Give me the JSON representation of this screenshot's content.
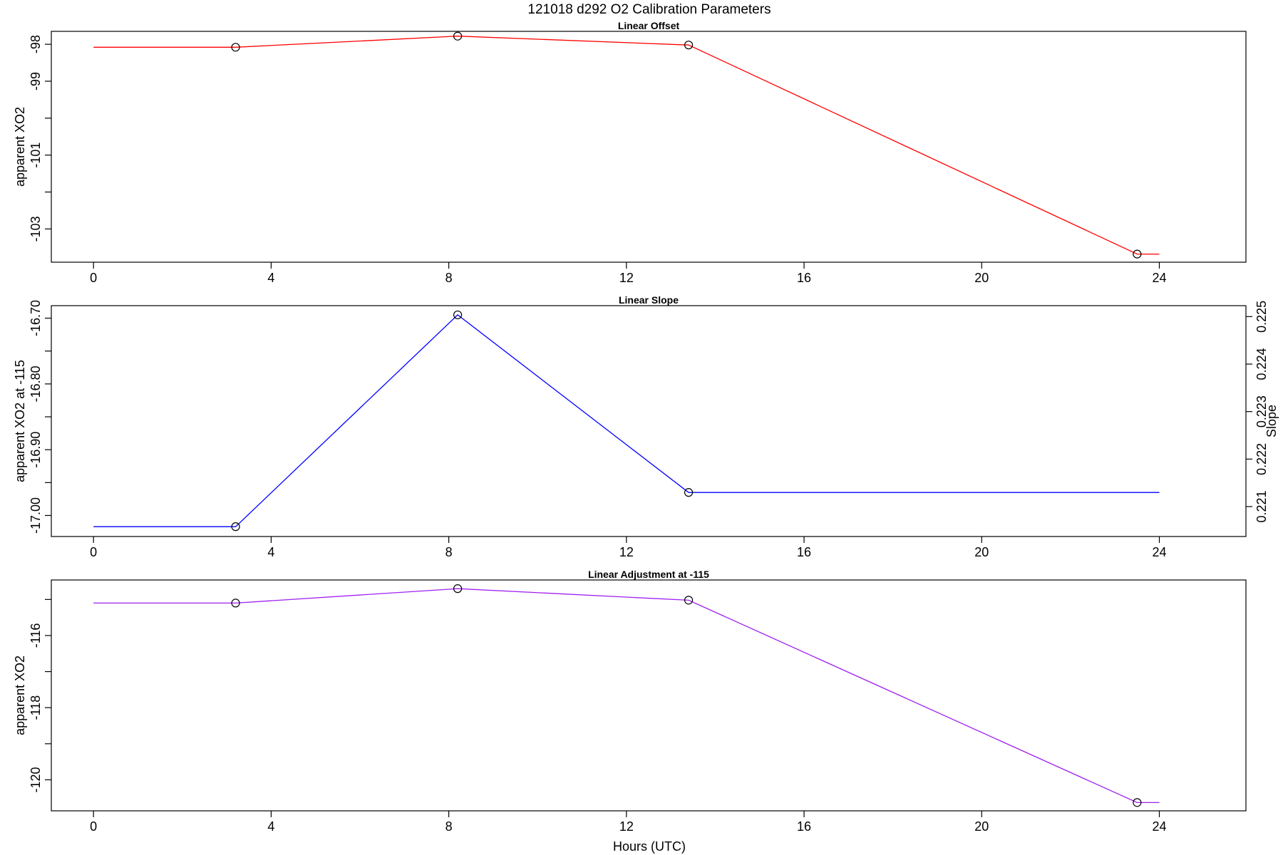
{
  "title": "121018   d292   O2 Calibration Parameters",
  "xlabel": "Hours (UTC)",
  "chart_data": [
    {
      "type": "line",
      "title": "Linear Offset",
      "ylabel": "apparent XO2",
      "xlim": [
        -0.95,
        25.95
      ],
      "ylim": [
        -103.9,
        -97.65
      ],
      "xticks": [
        0,
        4,
        8,
        12,
        16,
        20,
        24
      ],
      "yticks": [
        -98,
        -99,
        -100,
        -101,
        -102,
        -103
      ],
      "ytick_labels": [
        "-98",
        "-99",
        "",
        "-101",
        "",
        "-103"
      ],
      "series": [
        {
          "color": "#ff0000",
          "line": [
            [
              0,
              -98.08
            ],
            [
              3.2,
              -98.08
            ],
            [
              8.2,
              -97.78
            ],
            [
              13.4,
              -98.02
            ],
            [
              23.5,
              -103.68
            ],
            [
              24,
              -103.68
            ]
          ],
          "points": [
            [
              3.2,
              -98.08
            ],
            [
              8.2,
              -97.78
            ],
            [
              13.4,
              -98.02
            ],
            [
              23.5,
              -103.68
            ]
          ]
        }
      ]
    },
    {
      "type": "line",
      "title": "Linear Slope",
      "ylabel": "apparent XO2 at -115",
      "ylabel_right": "Slope",
      "xlim": [
        -0.95,
        25.95
      ],
      "ylim": [
        -17.032,
        -16.681
      ],
      "xticks": [
        0,
        4,
        8,
        12,
        16,
        20,
        24
      ],
      "yticks": [
        -16.7,
        -16.75,
        -16.8,
        -16.85,
        -16.9,
        -16.95,
        -17.0
      ],
      "ytick_labels": [
        "-16.70",
        "",
        "-16.80",
        "",
        "-16.90",
        "",
        "-17.00"
      ],
      "y2lim": [
        0.22037,
        0.22523
      ],
      "y2ticks": [
        0.221,
        0.222,
        0.223,
        0.224,
        0.225
      ],
      "y2tick_labels": [
        "0.221",
        "0.222",
        "0.223",
        "0.224",
        "0.225"
      ],
      "series": [
        {
          "color": "#0000ff",
          "line": [
            [
              0,
              -17.017
            ],
            [
              3.2,
              -17.017
            ],
            [
              8.2,
              -16.695
            ],
            [
              13.4,
              -16.965
            ],
            [
              24,
              -16.965
            ]
          ],
          "points": [
            [
              3.2,
              -17.017
            ],
            [
              8.2,
              -16.695
            ],
            [
              13.4,
              -16.965
            ]
          ]
        }
      ]
    },
    {
      "type": "line",
      "title": "Linear Adjustment at -115",
      "ylabel": "apparent XO2",
      "xlim": [
        -0.95,
        25.95
      ],
      "ylim": [
        -120.86,
        -114.46
      ],
      "xticks": [
        0,
        4,
        8,
        12,
        16,
        20,
        24
      ],
      "yticks": [
        -115,
        -116,
        -117,
        -118,
        -119,
        -120
      ],
      "ytick_labels": [
        "",
        "-116",
        "",
        "-118",
        "",
        "-120"
      ],
      "series": [
        {
          "color": "#a020f0",
          "line": [
            [
              0,
              -115.1
            ],
            [
              3.2,
              -115.1
            ],
            [
              8.2,
              -114.7
            ],
            [
              13.4,
              -115.02
            ],
            [
              23.5,
              -120.63
            ],
            [
              24,
              -120.63
            ]
          ],
          "points": [
            [
              3.2,
              -115.1
            ],
            [
              8.2,
              -114.7
            ],
            [
              13.4,
              -115.02
            ],
            [
              23.5,
              -120.63
            ]
          ]
        }
      ]
    }
  ]
}
